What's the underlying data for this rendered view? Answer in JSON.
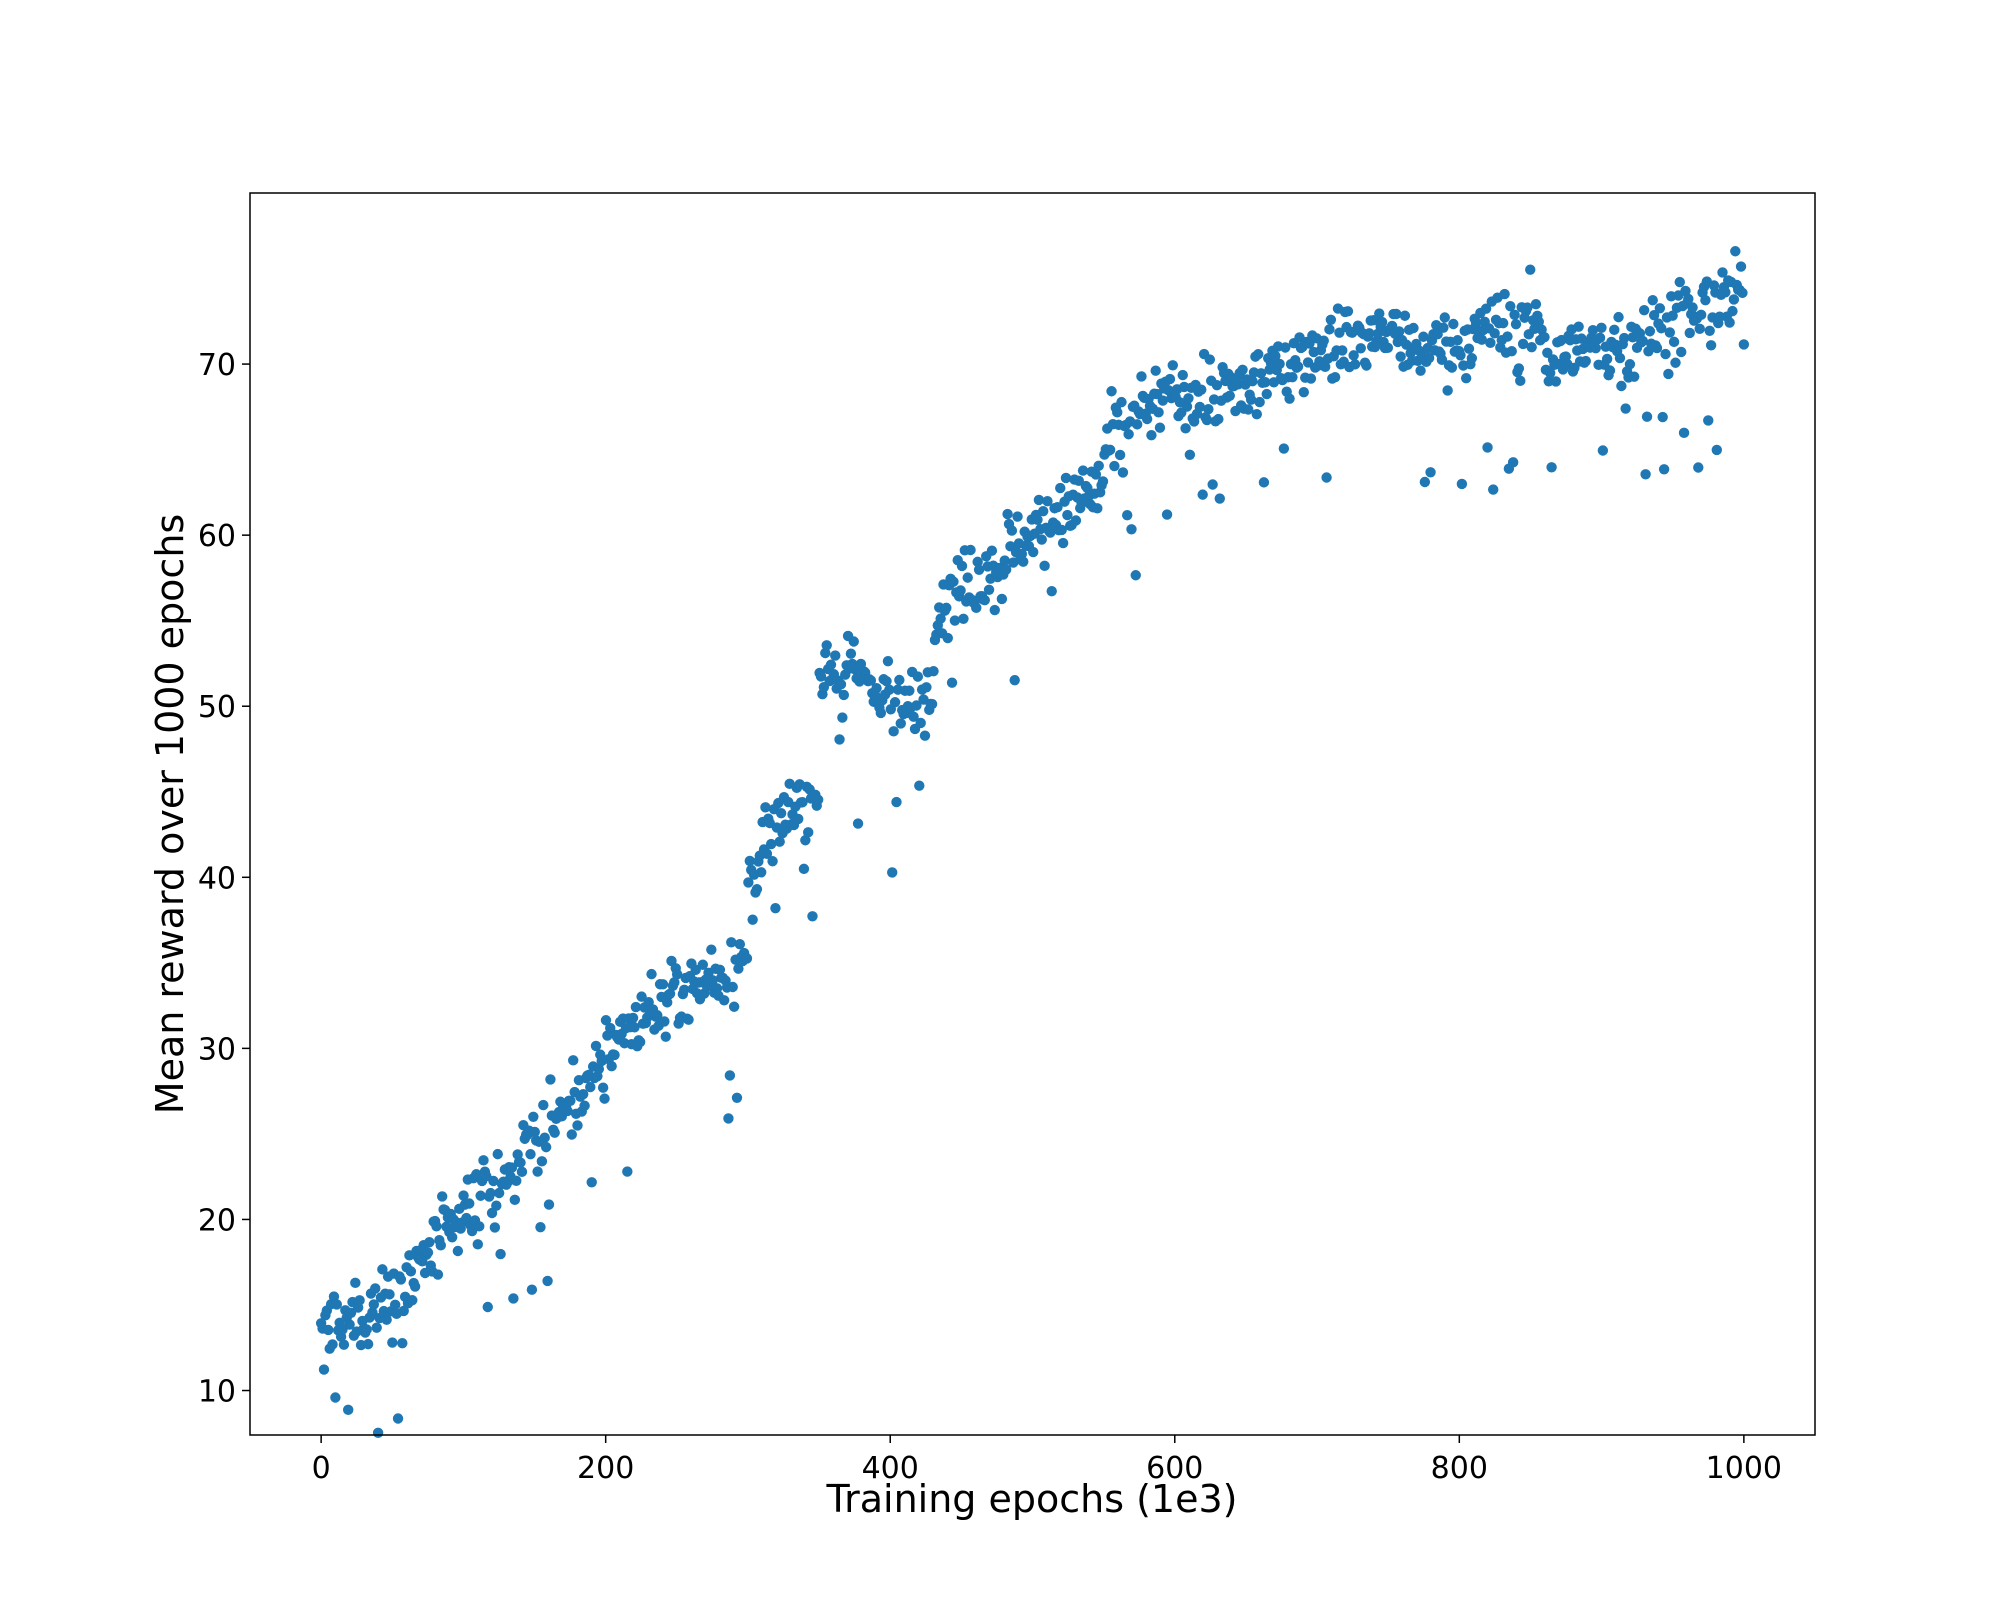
{
  "chart_data": {
    "type": "scatter",
    "title": "",
    "xlabel": "Training epochs (1e3)",
    "ylabel": "Mean reward over 1000 epochs",
    "xlim": [
      -50,
      1050
    ],
    "ylim": [
      7.4,
      80.0
    ],
    "x_ticks": [
      0,
      200,
      400,
      600,
      800,
      1000
    ],
    "y_ticks": [
      10,
      20,
      30,
      40,
      50,
      60,
      70
    ],
    "grid": false,
    "legend": "none",
    "marker_color": "#1f77b4",
    "segments": [
      {
        "x": [
          0,
          50
        ],
        "y": [
          13.0,
          15.5
        ]
      },
      {
        "x": [
          50,
          100
        ],
        "y": [
          15.5,
          20.0
        ]
      },
      {
        "x": [
          100,
          150
        ],
        "y": [
          20.0,
          24.5
        ]
      },
      {
        "x": [
          150,
          200
        ],
        "y": [
          24.5,
          29.0
        ]
      },
      {
        "x": [
          200,
          250
        ],
        "y": [
          30.0,
          33.5
        ]
      },
      {
        "x": [
          250,
          300
        ],
        "y": [
          33.5,
          35.0
        ]
      },
      {
        "x": [
          300,
          350
        ],
        "y": [
          40.5,
          45.5
        ]
      },
      {
        "x": [
          350,
          400
        ],
        "y": [
          52.5,
          51.0
        ]
      },
      {
        "x": [
          400,
          430
        ],
        "y": [
          49.0,
          51.0
        ]
      },
      {
        "x": [
          430,
          480
        ],
        "y": [
          55.5,
          59.0
        ]
      },
      {
        "x": [
          480,
          550
        ],
        "y": [
          59.0,
          63.0
        ]
      },
      {
        "x": [
          550,
          600
        ],
        "y": [
          65.0,
          68.5
        ]
      },
      {
        "x": [
          600,
          650
        ],
        "y": [
          68.0,
          68.5
        ]
      },
      {
        "x": [
          650,
          700
        ],
        "y": [
          68.5,
          71.0
        ]
      },
      {
        "x": [
          700,
          760
        ],
        "y": [
          71.0,
          72.0
        ]
      },
      {
        "x": [
          760,
          820
        ],
        "y": [
          70.5,
          71.5
        ]
      },
      {
        "x": [
          820,
          860
        ],
        "y": [
          72.0,
          72.5
        ]
      },
      {
        "x": [
          860,
          920
        ],
        "y": [
          70.5,
          71.0
        ]
      },
      {
        "x": [
          920,
          1000
        ],
        "y": [
          71.5,
          74.0
        ]
      }
    ],
    "noise": 1.4,
    "n_points": 1000
  }
}
